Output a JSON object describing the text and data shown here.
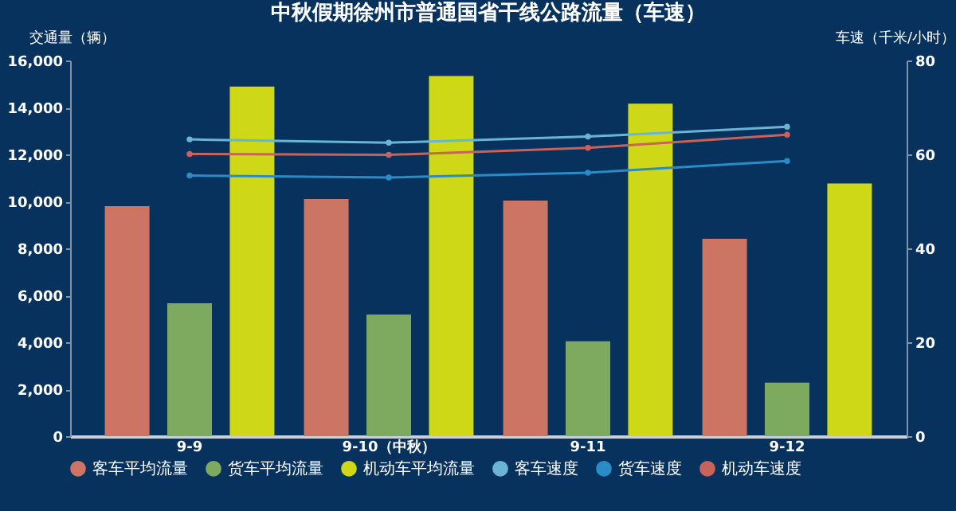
{
  "chart_data": {
    "type": "bar",
    "title": "中秋假期徐州市普通国省干线公路流量（车速）",
    "ylabel": "交通量（辆）",
    "y2label": "车速（千米/小时）",
    "categories": [
      "9-9",
      "9-10（中秋）",
      "9-11",
      "9-12"
    ],
    "series": [
      {
        "name": "客车平均流量",
        "color": "#cd7564",
        "values": [
          9800,
          10100,
          10030,
          8410
        ]
      },
      {
        "name": "货车平均流量",
        "color": "#7daa5e",
        "values": [
          5660,
          5180,
          4040,
          2280
        ]
      },
      {
        "name": "机动车平均流量",
        "color": "#cfd816",
        "values": [
          14890,
          15340,
          14160,
          10760
        ]
      },
      {
        "name": "客车速度",
        "type": "line",
        "axis": "y2",
        "color": "#6ab4d6",
        "values": [
          63.2,
          62.5,
          63.8,
          65.9
        ]
      },
      {
        "name": "货车速度",
        "type": "line",
        "axis": "y2",
        "color": "#2a8cc6",
        "values": [
          55.5,
          55.1,
          56.1,
          58.6
        ]
      },
      {
        "name": "机动车速度",
        "type": "line",
        "axis": "y2",
        "color": "#c8625a",
        "values": [
          60.1,
          59.9,
          61.4,
          64.2
        ]
      }
    ],
    "ylim": [
      0,
      16000
    ],
    "yticks": [
      {
        "value": 0,
        "label": "0"
      },
      {
        "value": 2000,
        "label": "2,000"
      },
      {
        "value": 4000,
        "label": "4,000"
      },
      {
        "value": 6000,
        "label": "6,000"
      },
      {
        "value": 8000,
        "label": "8,000"
      },
      {
        "value": 10000,
        "label": "10,000"
      },
      {
        "value": 12000,
        "label": "12,000"
      },
      {
        "value": 14000,
        "label": "14,000"
      },
      {
        "value": 16000,
        "label": "16,000"
      }
    ],
    "y2lim": [
      0,
      80
    ],
    "y2ticks": [
      0,
      20,
      40,
      60,
      80
    ],
    "legend": "bottom",
    "marker": "circle",
    "grid": false
  }
}
